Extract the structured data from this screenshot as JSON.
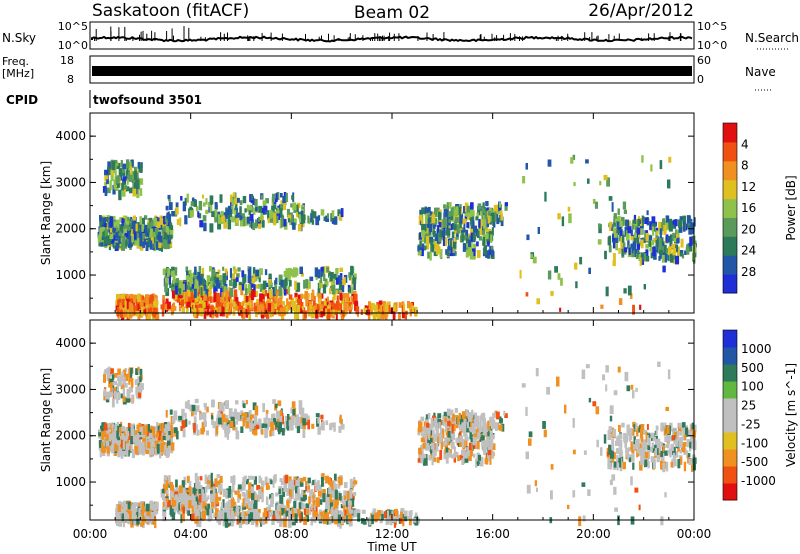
{
  "header": {
    "radar": "Saskatoon (fitACF)",
    "beam": "Beam 02",
    "date": "26/Apr/2012"
  },
  "top_panels": {
    "nsky_label": "N.Sky",
    "nsky_ticks": [
      "10^5",
      "10^0"
    ],
    "nsearch_label": "N.Search",
    "nsearch_ticks": [
      "10^5",
      "10^0"
    ],
    "freq_label_1": "Freq.",
    "freq_label_2": "[MHz]",
    "freq_ticks": [
      "18",
      "8"
    ],
    "nave_label": "Nave",
    "nave_ticks": [
      "60",
      "0"
    ],
    "cpid_label": "CPID",
    "cpid_value": "twofsound 3501"
  },
  "colors": {
    "power_scale": [
      "#1f2fd6",
      "#2257a8",
      "#2d7a5a",
      "#5a9a5a",
      "#8fc24a",
      "#e0c020",
      "#f09020",
      "#f05010",
      "#e01010"
    ],
    "velocity_scale": [
      "#e01010",
      "#f05010",
      "#f09020",
      "#e0c020",
      "#c0c0c0",
      "#c0c0c0",
      "#60b840",
      "#2e7a5a",
      "#2257a8",
      "#1f2fd6"
    ]
  },
  "chart_data": [
    {
      "type": "heatmap",
      "name": "power-panel",
      "xlabel": "Time UT",
      "ylabel": "Slant Range [km]",
      "x_ticks": [
        "00:00",
        "04:00",
        "08:00",
        "12:00",
        "16:00",
        "20:00",
        "00:00"
      ],
      "y_ticks": [
        "1000",
        "2000",
        "3000",
        "4000"
      ],
      "xlim": [
        0,
        24
      ],
      "ylim": [
        180,
        4500
      ],
      "colorbar": {
        "label": "Power [dB]",
        "range": [
          0,
          32
        ],
        "ticks": [
          "4",
          "8",
          "12",
          "16",
          "20",
          "24",
          "28"
        ]
      }
    },
    {
      "type": "heatmap",
      "name": "velocity-panel",
      "xlabel": "Time UT",
      "ylabel": "Slant Range [km]",
      "x_ticks": [
        "00:00",
        "04:00",
        "08:00",
        "12:00",
        "16:00",
        "20:00",
        "00:00"
      ],
      "y_ticks": [
        "1000",
        "2000",
        "3000",
        "4000"
      ],
      "xlim": [
        0,
        24
      ],
      "ylim": [
        180,
        4500
      ],
      "colorbar": {
        "label": "Velocity [m s^-1]",
        "range": [
          -1000,
          1000
        ],
        "ticks": [
          "1000",
          "500",
          "100",
          "25",
          "-25",
          "-100",
          "-500",
          "-1000"
        ]
      }
    }
  ]
}
